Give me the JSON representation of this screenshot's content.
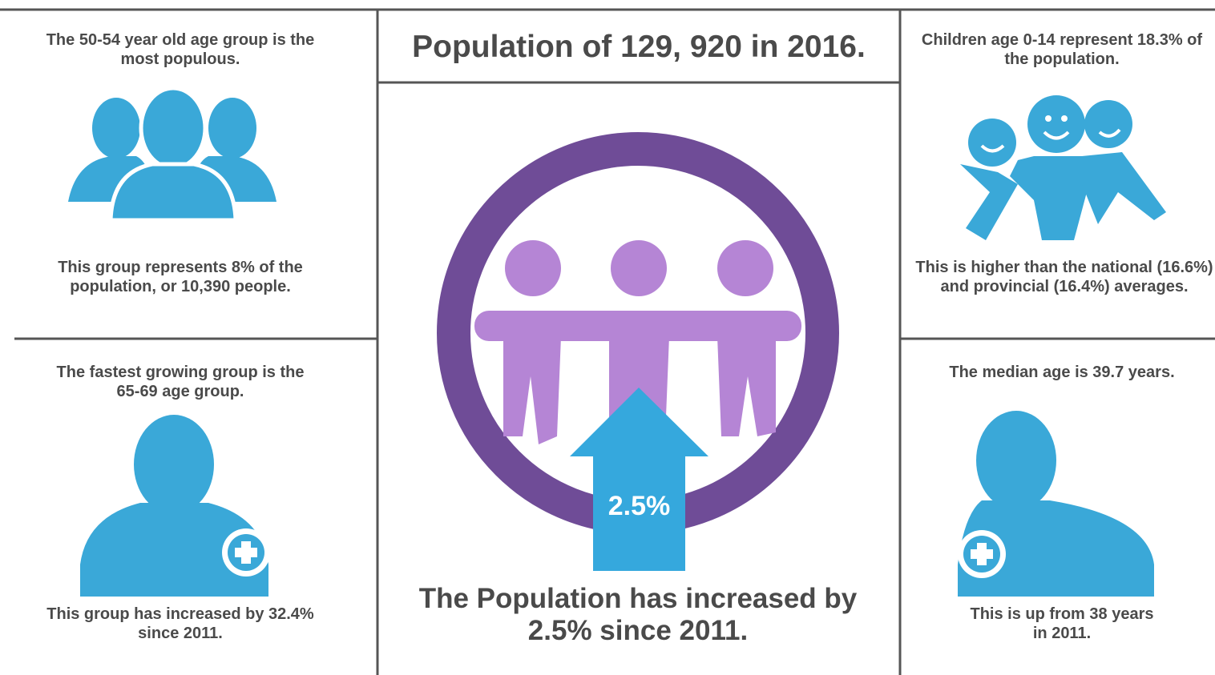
{
  "left": {
    "top_heading": "The 50-54 year old age group is the most populous.",
    "top_detail": "This group represents 8% of the population, or 10,390 people.",
    "bottom_heading": "The fastest growing group is the 65-69 age group.",
    "bottom_detail": "This group has increased by 32.4% since 2011."
  },
  "center": {
    "title": "Population of 129, 920 in 2016.",
    "arrow_label": "2.5%",
    "caption": "The Population has increased by 2.5% since 2011."
  },
  "right": {
    "top_heading": "Children age 0-14 represent 18.3% of the population.",
    "top_detail": "This is higher than the national (16.6%) and provincial (16.4%) averages.",
    "bottom_heading": "The median age is 39.7 years.",
    "bottom_detail": "This is up from 38 years in 2011."
  }
}
